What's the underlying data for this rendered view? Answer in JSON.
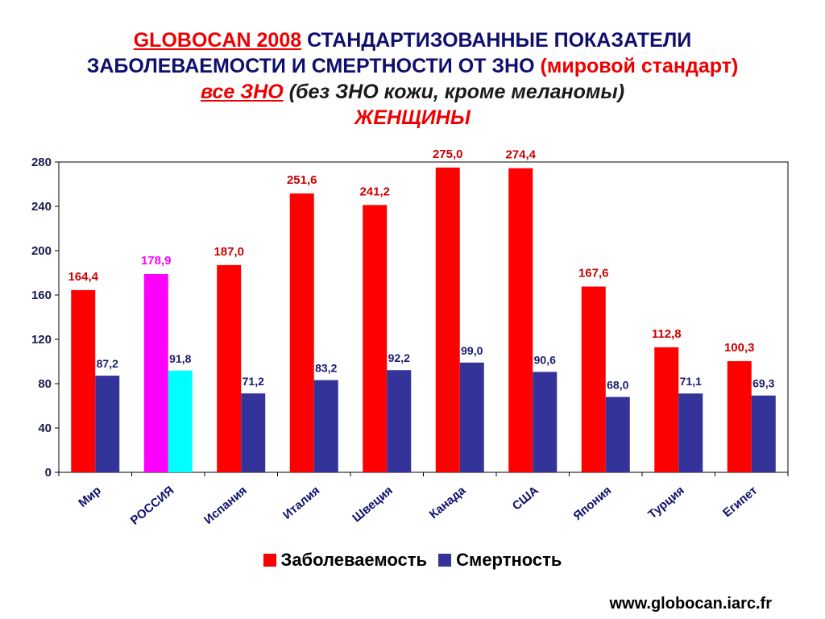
{
  "title": {
    "line1_a": "GLOBOCAN 2008",
    "line1_b": "СТАНДАРТИЗОВАННЫЕ ПОКАЗАТЕЛИ",
    "line2_a": "ЗАБОЛЕВАЕМОСТИ И СМЕРТНОСТИ ОТ ЗНО",
    "line2_b": "(мировой стандарт)",
    "line3_a": "все ЗНО",
    "line3_b": "(без ЗНО кожи, кроме меланомы)",
    "line4": "ЖЕНЩИНЫ"
  },
  "source": "www.globocan.iarc.fr",
  "colors": {
    "incidence": "#ff0000",
    "mortality": "#333399",
    "russia_incidence": "#ff00ff",
    "russia_mortality": "#00ffff",
    "incidence_label": "#cc0000",
    "russia_label": "#ff00ff",
    "mortality_label": "#1a1a6e"
  },
  "chart_data": {
    "type": "bar",
    "categories": [
      "Мир",
      "РОССИЯ",
      "Испания",
      "Италия",
      "Швеция",
      "Канада",
      "США",
      "Япония",
      "Турция",
      "Египет"
    ],
    "series": [
      {
        "name": "Заболеваемость",
        "values": [
          164.4,
          178.9,
          187.0,
          251.6,
          241.2,
          275.0,
          274.4,
          167.6,
          112.8,
          100.3
        ],
        "labels": [
          "164,4",
          "178,9",
          "187,0",
          "251,6",
          "241,2",
          "275,0",
          "274,4",
          "167,6",
          "112,8",
          "100,3"
        ]
      },
      {
        "name": "Смертность",
        "values": [
          87.2,
          91.8,
          71.2,
          83.2,
          92.2,
          99.0,
          90.6,
          68.0,
          71.1,
          69.3
        ],
        "labels": [
          "87,2",
          "91,8",
          "71,2",
          "83,2",
          "92,2",
          "99,0",
          "90,6",
          "68,0",
          "71,1",
          "69,3"
        ]
      }
    ],
    "highlight_category": "РОССИЯ",
    "ylim": [
      0,
      280
    ],
    "yticks": [
      0,
      40,
      80,
      120,
      160,
      200,
      240,
      280
    ],
    "legend_position": "bottom",
    "grid": false
  }
}
